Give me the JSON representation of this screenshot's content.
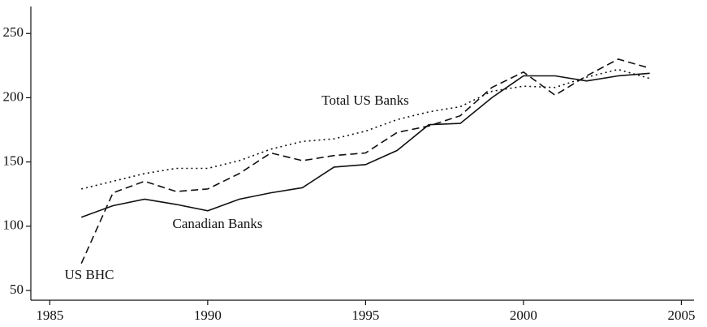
{
  "chart_data": {
    "type": "line",
    "x": [
      1986,
      1987,
      1988,
      1989,
      1990,
      1991,
      1992,
      1993,
      1994,
      1995,
      1996,
      1997,
      1998,
      1999,
      2000,
      2001,
      2002,
      2003,
      2004
    ],
    "series": [
      {
        "name": "Canadian Banks",
        "color": "#111111",
        "dash": "solid",
        "values": [
          107,
          116,
          121,
          117,
          112,
          121,
          126,
          130,
          146,
          148,
          159,
          179,
          180,
          200,
          217,
          217,
          213,
          217,
          219
        ]
      },
      {
        "name": "US BHC",
        "color": "#111111",
        "dash": "dashed",
        "values": [
          71,
          126,
          135,
          127,
          129,
          141,
          157,
          151,
          155,
          157,
          173,
          178,
          186,
          208,
          220,
          202,
          217,
          230,
          223
        ]
      },
      {
        "name": "Total US Banks",
        "color": "#111111",
        "dash": "dotted",
        "values": [
          129,
          135,
          141,
          145,
          145,
          151,
          160,
          166,
          168,
          174,
          183,
          189,
          193,
          205,
          209,
          208,
          216,
          222,
          215
        ]
      }
    ],
    "xlim": [
      1984.4,
      2005.4
    ],
    "xticks": [
      1985,
      1990,
      1995,
      2000,
      2005
    ],
    "ylim": [
      42.4,
      271
    ],
    "yticks": [
      50,
      100,
      150,
      200,
      250
    ],
    "grid": false
  }
}
